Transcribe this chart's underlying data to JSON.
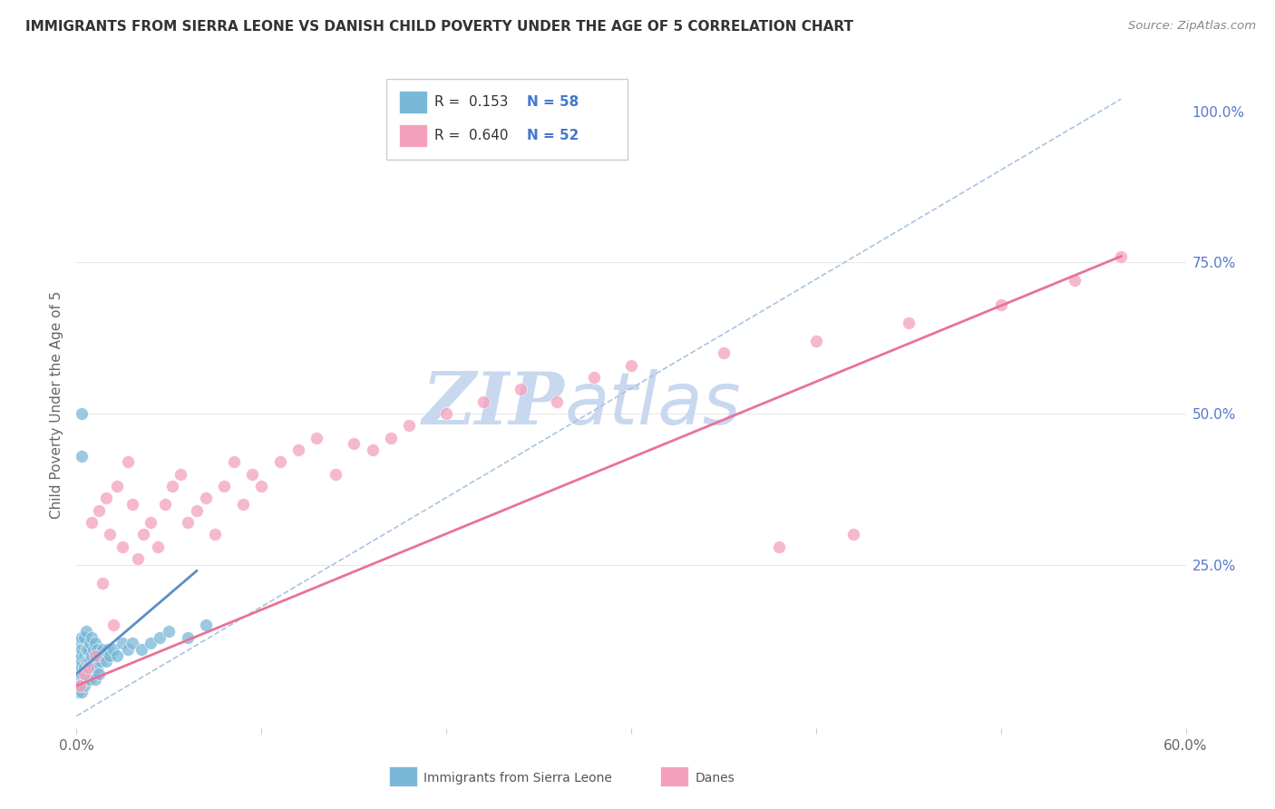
{
  "title": "IMMIGRANTS FROM SIERRA LEONE VS DANISH CHILD POVERTY UNDER THE AGE OF 5 CORRELATION CHART",
  "source": "Source: ZipAtlas.com",
  "ylabel": "Child Poverty Under the Age of 5",
  "xlim": [
    0.0,
    0.6
  ],
  "ylim": [
    -0.02,
    1.05
  ],
  "blue_color": "#7ab8d9",
  "pink_color": "#f4a0bc",
  "trend_blue_color": "#5a8fc4",
  "trend_pink_color": "#e8729a",
  "dashed_line_color": "#aac4e0",
  "watermark_zip_color": "#c8d8ef",
  "watermark_atlas_color": "#c8d8ef",
  "background_color": "#ffffff",
  "grid_color": "#e8e8e8",
  "blue_scatter_x": [
    0.001,
    0.001,
    0.001,
    0.002,
    0.002,
    0.002,
    0.002,
    0.003,
    0.003,
    0.003,
    0.003,
    0.003,
    0.003,
    0.004,
    0.004,
    0.004,
    0.004,
    0.005,
    0.005,
    0.005,
    0.005,
    0.006,
    0.006,
    0.006,
    0.007,
    0.007,
    0.007,
    0.008,
    0.008,
    0.008,
    0.009,
    0.009,
    0.01,
    0.01,
    0.01,
    0.011,
    0.011,
    0.012,
    0.012,
    0.013,
    0.014,
    0.015,
    0.016,
    0.017,
    0.018,
    0.02,
    0.022,
    0.025,
    0.028,
    0.03,
    0.035,
    0.04,
    0.045,
    0.05,
    0.06,
    0.07,
    0.003,
    0.003
  ],
  "blue_scatter_y": [
    0.04,
    0.07,
    0.09,
    0.05,
    0.08,
    0.1,
    0.12,
    0.04,
    0.07,
    0.09,
    0.1,
    0.11,
    0.13,
    0.05,
    0.08,
    0.1,
    0.13,
    0.06,
    0.09,
    0.11,
    0.14,
    0.07,
    0.09,
    0.11,
    0.06,
    0.09,
    0.12,
    0.07,
    0.1,
    0.13,
    0.08,
    0.11,
    0.06,
    0.09,
    0.12,
    0.08,
    0.11,
    0.07,
    0.1,
    0.09,
    0.11,
    0.1,
    0.09,
    0.11,
    0.1,
    0.11,
    0.1,
    0.12,
    0.11,
    0.12,
    0.11,
    0.12,
    0.13,
    0.14,
    0.13,
    0.15,
    0.43,
    0.5
  ],
  "pink_scatter_x": [
    0.002,
    0.004,
    0.006,
    0.008,
    0.01,
    0.012,
    0.014,
    0.016,
    0.018,
    0.02,
    0.022,
    0.025,
    0.028,
    0.03,
    0.033,
    0.036,
    0.04,
    0.044,
    0.048,
    0.052,
    0.056,
    0.06,
    0.065,
    0.07,
    0.075,
    0.08,
    0.085,
    0.09,
    0.095,
    0.1,
    0.11,
    0.12,
    0.13,
    0.14,
    0.15,
    0.16,
    0.17,
    0.18,
    0.2,
    0.22,
    0.24,
    0.26,
    0.28,
    0.3,
    0.35,
    0.4,
    0.45,
    0.5,
    0.54,
    0.565,
    0.38,
    0.42
  ],
  "pink_scatter_y": [
    0.05,
    0.07,
    0.08,
    0.32,
    0.1,
    0.34,
    0.22,
    0.36,
    0.3,
    0.15,
    0.38,
    0.28,
    0.42,
    0.35,
    0.26,
    0.3,
    0.32,
    0.28,
    0.35,
    0.38,
    0.4,
    0.32,
    0.34,
    0.36,
    0.3,
    0.38,
    0.42,
    0.35,
    0.4,
    0.38,
    0.42,
    0.44,
    0.46,
    0.4,
    0.45,
    0.44,
    0.46,
    0.48,
    0.5,
    0.52,
    0.54,
    0.52,
    0.56,
    0.58,
    0.6,
    0.62,
    0.65,
    0.68,
    0.72,
    0.76,
    0.28,
    0.3
  ],
  "blue_trend_x": [
    0.0,
    0.065
  ],
  "blue_trend_y": [
    0.07,
    0.24
  ],
  "pink_trend_x": [
    0.0,
    0.565
  ],
  "pink_trend_y": [
    0.05,
    0.76
  ],
  "dashed_trend_x": [
    0.0,
    0.565
  ],
  "dashed_trend_y": [
    0.0,
    1.02
  ]
}
